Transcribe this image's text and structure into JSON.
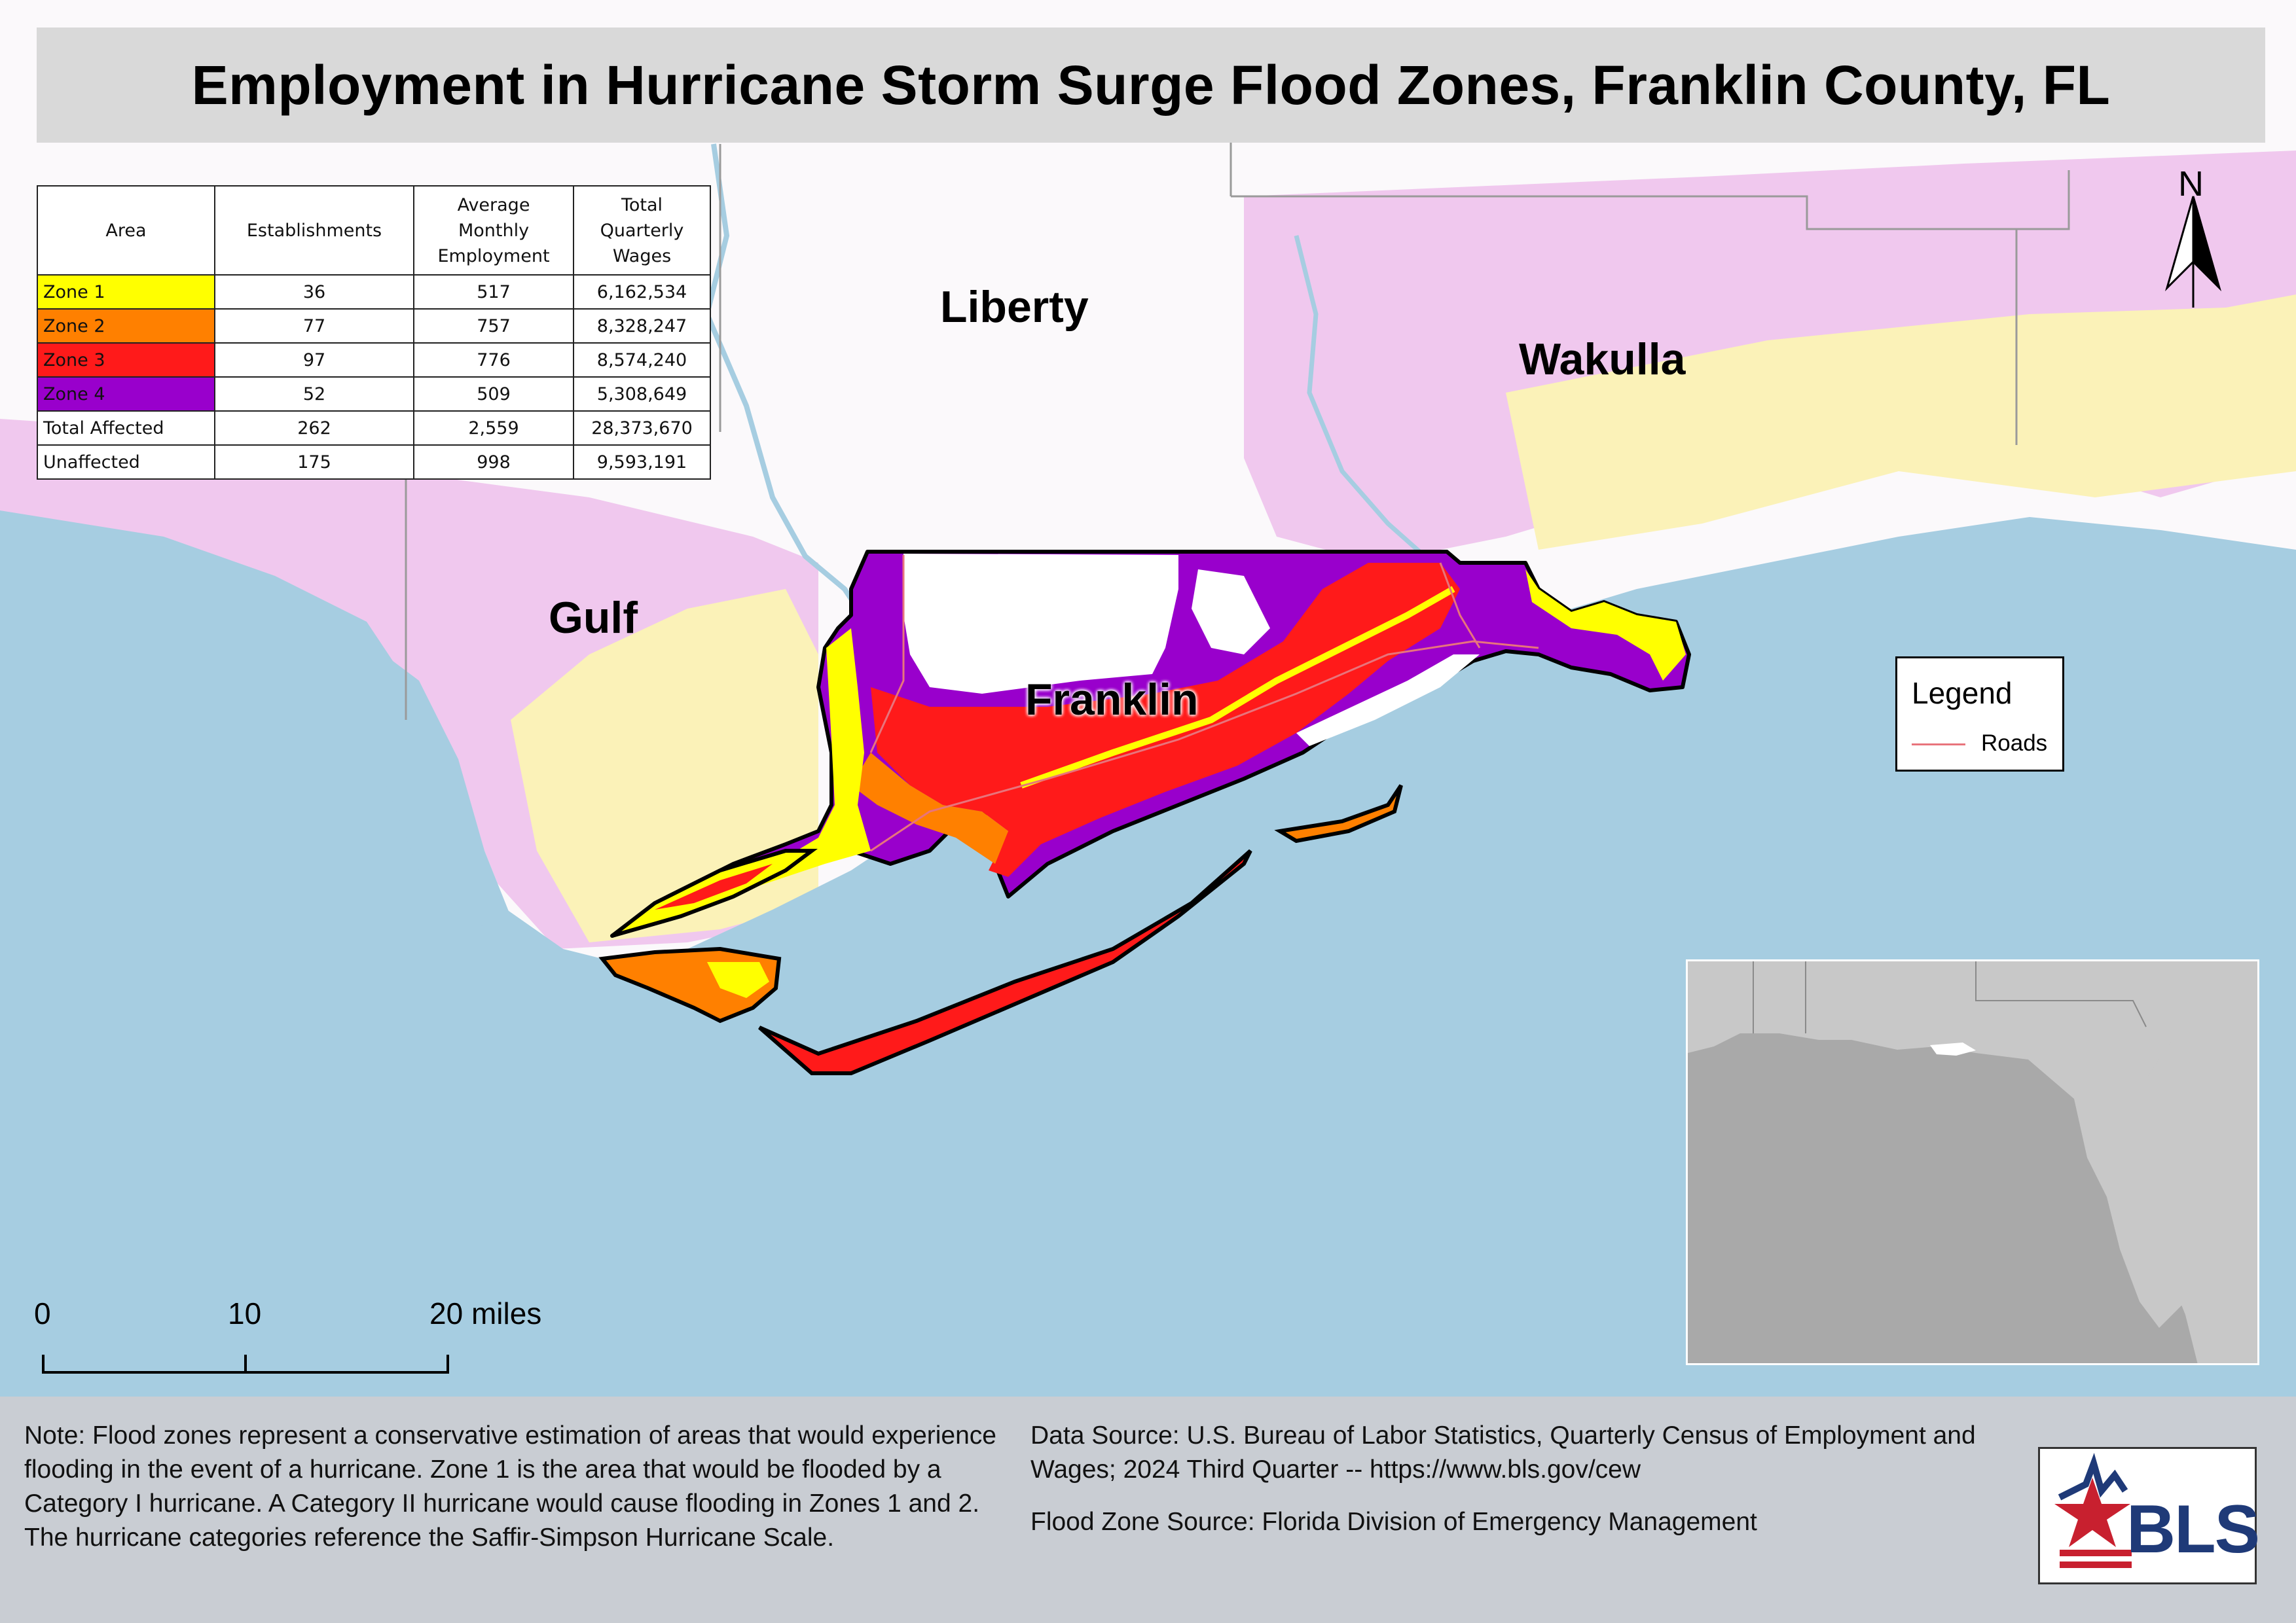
{
  "title": "Employment in Hurricane Storm Surge Flood Zones, Franklin County, FL",
  "table": {
    "headers": [
      "Area",
      "Establishments",
      "Average Monthly Employment",
      "Total Quarterly Wages"
    ],
    "header_lines": [
      [
        "Area"
      ],
      [
        "Establishments"
      ],
      [
        "Average",
        "Monthly",
        "Employment"
      ],
      [
        "Total",
        "Quarterly",
        "Wages"
      ]
    ],
    "rows": [
      {
        "area": "Zone 1",
        "establishments": "36",
        "employment": "517",
        "wages": "6,162,534",
        "color": "#ffff00"
      },
      {
        "area": "Zone 2",
        "establishments": "77",
        "employment": "757",
        "wages": "8,328,247",
        "color": "#ff8000"
      },
      {
        "area": "Zone 3",
        "establishments": "97",
        "employment": "776",
        "wages": "8,574,240",
        "color": "#ff1a1a"
      },
      {
        "area": "Zone 4",
        "establishments": "52",
        "employment": "509",
        "wages": "5,308,649",
        "color": "#9900cc"
      },
      {
        "area": "Total Affected",
        "establishments": "262",
        "employment": "2,559",
        "wages": "28,373,670",
        "color": "#ffffff"
      },
      {
        "area": "Unaffected",
        "establishments": "175",
        "employment": "998",
        "wages": "9,593,191",
        "color": "#ffffff"
      }
    ]
  },
  "counties": {
    "liberty": "Liberty",
    "wakulla": "Wakulla",
    "gulf": "Gulf",
    "franklin": "Franklin"
  },
  "legend": {
    "title": "Legend",
    "items": [
      {
        "label": "Roads",
        "color": "#e8747c"
      }
    ]
  },
  "north_arrow": "N",
  "scale": {
    "ticks": [
      "0",
      "10",
      "20 miles"
    ]
  },
  "footer": {
    "note": "Note: Flood zones represent a conservative estimation of areas that would experience flooding in the event of a hurricane. Zone 1 is the area that would be flooded by a Category I hurricane. A Category II hurricane would cause flooding in Zones 1 and 2. The hurricane categories reference the Saffir-Simpson Hurricane Scale.",
    "data_source": "Data Source: U.S. Bureau of Labor Statistics, Quarterly Census of Employment and Wages; 2024 Third Quarter -- https://www.bls.gov/cew",
    "flood_source": "Flood Zone Source: Florida Division of Emergency Management"
  },
  "logo_text": "BLS",
  "colors": {
    "water": "#a6cde1",
    "zone1": "#ffff00",
    "zone2": "#ff8000",
    "zone3": "#ff1a1a",
    "zone4": "#9900cc",
    "neighbor_surge": "#f0c8ee"
  }
}
